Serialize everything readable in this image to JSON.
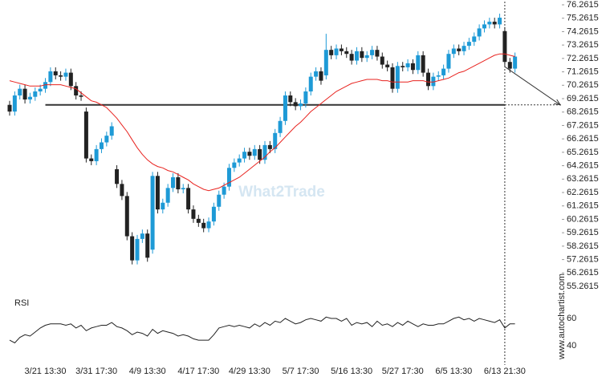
{
  "chart_data": {
    "type": "candlestick",
    "categories": [
      null,
      null,
      null,
      null,
      null,
      null,
      null,
      "3/21 13:30",
      null,
      null,
      null,
      null,
      null,
      null,
      null,
      null,
      null,
      "3/31 17:30",
      null,
      null,
      null,
      null,
      null,
      null,
      null,
      null,
      null,
      "4/9 13:30",
      null,
      null,
      null,
      null,
      null,
      null,
      null,
      null,
      null,
      "4/17 17:30",
      null,
      null,
      null,
      null,
      null,
      null,
      null,
      null,
      null,
      "4/29 13:30",
      null,
      null,
      null,
      null,
      null,
      null,
      null,
      null,
      null,
      "5/7 17:30",
      null,
      null,
      null,
      null,
      null,
      null,
      null,
      null,
      null,
      "5/16 13:30",
      null,
      null,
      null,
      null,
      null,
      null,
      null,
      null,
      null,
      "5/27 17:30",
      null,
      null,
      null,
      null,
      null,
      null,
      null,
      null,
      null,
      "6/5 13:30",
      null,
      null,
      null,
      null,
      null,
      null,
      null,
      null,
      null,
      "6/13 21:30",
      null,
      null
    ],
    "open": [
      68.8,
      68.3,
      69.5,
      70.0,
      69.2,
      69.4,
      69.8,
      70.0,
      70.5,
      71.3,
      71.0,
      70.9,
      71.2,
      70.2,
      69.5,
      68.3,
      64.8,
      64.6,
      65.5,
      66.0,
      66.5,
      64.0,
      62.9,
      62.0,
      59.0,
      57.2,
      58.8,
      59.2,
      58.0,
      63.5,
      61.0,
      61.5,
      62.6,
      63.4,
      62.5,
      62.6,
      61.0,
      60.3,
      60.0,
      59.6,
      60.1,
      61.2,
      62.1,
      62.7,
      64.1,
      64.5,
      64.8,
      65.3,
      65.0,
      65.5,
      64.7,
      65.8,
      65.5,
      66.7,
      67.6,
      69.5,
      69.0,
      68.7,
      68.9,
      69.8,
      70.9,
      71.3,
      71.0,
      72.9,
      72.5,
      73.0,
      72.8,
      72.6,
      72.1,
      72.8,
      72.3,
      72.5,
      72.9,
      72.4,
      71.8,
      71.6,
      70.0,
      71.7,
      71.6,
      71.9,
      71.4,
      72.5,
      71.2,
      70.2,
      70.9,
      71.0,
      71.5,
      72.6,
      73.0,
      72.8,
      73.2,
      73.5,
      73.9,
      74.5,
      74.8,
      75.0,
      74.8,
      74.3,
      72.0,
      71.5
    ],
    "high": [
      69.1,
      69.8,
      70.3,
      70.3,
      69.7,
      70.1,
      70.3,
      70.8,
      71.6,
      71.6,
      71.3,
      71.5,
      71.5,
      70.5,
      69.8,
      68.6,
      65.1,
      65.8,
      66.3,
      66.8,
      67.5,
      64.3,
      63.2,
      62.3,
      59.3,
      59.1,
      59.5,
      59.5,
      63.8,
      63.8,
      61.8,
      62.9,
      63.7,
      63.7,
      62.9,
      62.9,
      61.3,
      60.6,
      60.3,
      60.4,
      61.5,
      62.4,
      63.0,
      64.4,
      64.8,
      65.1,
      65.6,
      65.6,
      65.8,
      65.8,
      66.1,
      66.1,
      67.0,
      67.9,
      69.8,
      69.8,
      69.3,
      69.2,
      70.1,
      71.2,
      71.6,
      71.6,
      74.1,
      73.2,
      73.3,
      73.3,
      73.1,
      72.9,
      73.1,
      73.1,
      72.8,
      73.2,
      73.2,
      72.7,
      72.1,
      71.9,
      72.0,
      72.0,
      72.2,
      72.2,
      72.8,
      72.8,
      71.5,
      71.2,
      71.3,
      71.8,
      72.9,
      73.3,
      73.3,
      73.5,
      73.8,
      74.2,
      74.8,
      75.1,
      75.3,
      75.3,
      75.6,
      74.6,
      72.3,
      72.7
    ],
    "low": [
      68.0,
      68.0,
      69.2,
      68.9,
      68.9,
      69.1,
      69.5,
      69.7,
      70.2,
      70.7,
      70.6,
      70.6,
      69.9,
      69.2,
      69.1,
      64.5,
      64.3,
      64.3,
      65.2,
      65.7,
      66.2,
      62.6,
      61.7,
      58.7,
      56.9,
      56.9,
      58.5,
      57.1,
      57.7,
      60.7,
      60.7,
      61.2,
      62.3,
      62.2,
      62.2,
      60.7,
      60.0,
      59.7,
      59.3,
      59.3,
      59.8,
      60.9,
      61.8,
      62.4,
      63.8,
      64.2,
      64.5,
      64.7,
      64.7,
      64.4,
      64.4,
      65.2,
      65.2,
      66.4,
      67.3,
      68.7,
      68.4,
      68.4,
      68.6,
      69.5,
      70.6,
      70.3,
      70.7,
      72.2,
      72.2,
      72.5,
      72.3,
      71.8,
      71.8,
      72.0,
      72.0,
      72.2,
      72.1,
      71.5,
      71.3,
      69.7,
      69.7,
      71.3,
      71.3,
      71.1,
      71.1,
      70.9,
      69.9,
      69.9,
      70.6,
      70.7,
      71.2,
      72.3,
      72.5,
      72.5,
      72.9,
      73.2,
      73.6,
      74.2,
      74.5,
      74.5,
      74.5,
      71.7,
      71.2,
      71.2
    ],
    "close": [
      68.3,
      69.5,
      70.0,
      69.2,
      69.4,
      69.8,
      70.0,
      70.5,
      71.3,
      71.0,
      70.9,
      71.2,
      70.2,
      69.5,
      69.4,
      64.8,
      64.6,
      65.5,
      66.0,
      66.5,
      67.2,
      62.9,
      62.0,
      59.0,
      57.2,
      58.8,
      59.2,
      57.4,
      63.5,
      61.0,
      61.5,
      62.6,
      63.4,
      62.5,
      62.6,
      61.0,
      60.3,
      60.0,
      59.6,
      60.1,
      61.2,
      62.1,
      62.7,
      64.1,
      64.5,
      64.8,
      65.3,
      65.0,
      65.5,
      64.7,
      65.8,
      65.5,
      66.7,
      67.6,
      69.5,
      69.0,
      68.7,
      68.9,
      69.8,
      70.9,
      71.3,
      70.6,
      72.9,
      72.5,
      73.0,
      72.8,
      72.6,
      72.1,
      72.8,
      72.3,
      72.5,
      72.9,
      72.4,
      71.8,
      71.6,
      70.0,
      71.7,
      71.6,
      71.9,
      71.4,
      72.5,
      71.2,
      70.2,
      70.9,
      71.0,
      71.5,
      72.6,
      73.0,
      72.8,
      73.2,
      73.5,
      73.9,
      74.5,
      74.8,
      75.0,
      74.8,
      75.3,
      72.0,
      71.5,
      72.4
    ],
    "up_color": "#1e9ad6",
    "down_color": "#222222",
    "ylim": [
      55.0,
      76.5
    ],
    "yticks": [
      76.2615,
      75.2615,
      74.2615,
      73.2615,
      72.2615,
      71.2615,
      70.2615,
      69.2615,
      68.2615,
      67.2615,
      66.2615,
      65.2615,
      64.2615,
      63.2615,
      62.2615,
      61.2615,
      60.2615,
      59.2615,
      58.2615,
      57.2615,
      56.2615,
      55.2615
    ],
    "moving_average": {
      "color": "#e8231f",
      "values": [
        70.6,
        70.5,
        70.4,
        70.3,
        70.2,
        70.2,
        70.2,
        70.3,
        70.3,
        70.3,
        70.3,
        70.2,
        70.1,
        70.0,
        69.7,
        69.4,
        69.1,
        69.0,
        68.8,
        68.6,
        68.2,
        67.8,
        67.3,
        66.8,
        66.2,
        65.6,
        65.1,
        64.7,
        64.4,
        64.2,
        64.1,
        63.9,
        63.8,
        63.6,
        63.4,
        63.2,
        62.9,
        62.7,
        62.5,
        62.4,
        62.5,
        62.6,
        62.8,
        63.0,
        63.2,
        63.4,
        63.7,
        64.0,
        64.3,
        64.6,
        64.9,
        65.3,
        65.6,
        66.0,
        66.4,
        66.8,
        67.2,
        67.5,
        67.9,
        68.3,
        68.6,
        68.9,
        69.2,
        69.5,
        69.8,
        70.0,
        70.2,
        70.4,
        70.5,
        70.6,
        70.7,
        70.7,
        70.7,
        70.6,
        70.6,
        70.5,
        70.5,
        70.5,
        70.5,
        70.6,
        70.6,
        70.6,
        70.5,
        70.5,
        70.6,
        70.7,
        70.8,
        71.0,
        71.2,
        71.3,
        71.5,
        71.7,
        71.9,
        72.1,
        72.3,
        72.5,
        72.6,
        72.6,
        72.5,
        72.4
      ]
    },
    "support": {
      "value": 68.8,
      "color": "#333333"
    },
    "rsi": {
      "label": "RSI",
      "color": "#222222",
      "ylim": [
        28,
        70
      ],
      "yticks": [
        60,
        40
      ],
      "values": [
        44,
        42,
        46,
        48,
        47,
        50,
        53,
        55,
        56,
        56,
        56,
        55,
        56,
        53,
        55,
        51,
        53,
        54,
        55,
        55,
        57,
        54,
        53,
        51,
        48,
        50,
        49,
        47,
        52,
        49,
        51,
        50,
        49,
        47,
        48,
        47,
        45,
        44,
        44,
        44,
        48,
        53,
        54,
        55,
        54,
        55,
        54,
        53,
        56,
        54,
        57,
        55,
        58,
        57,
        60,
        58,
        56,
        57,
        59,
        60,
        59,
        58,
        61,
        60,
        60,
        58,
        60,
        55,
        57,
        56,
        57,
        54,
        58,
        55,
        56,
        54,
        57,
        55,
        58,
        56,
        54,
        56,
        55,
        55,
        56,
        56,
        58,
        60,
        61,
        59,
        60,
        58,
        60,
        59,
        58,
        57,
        59,
        53,
        56,
        56
      ]
    },
    "watermark": "What2Trade",
    "source": "www.autochartist.com"
  }
}
